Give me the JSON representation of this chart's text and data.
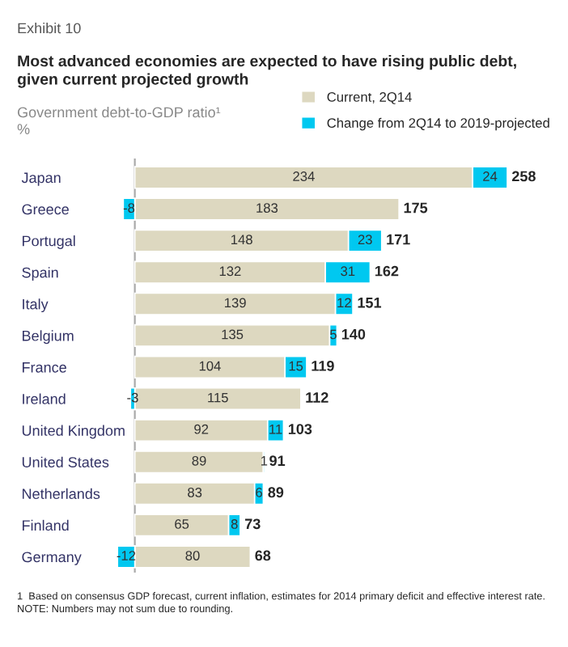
{
  "chart_data": {
    "type": "bar",
    "orientation": "horizontal",
    "stacked": true,
    "title": "Exhibit 10",
    "subtitle": "Most advanced economies are expected to have rising public debt,\ngiven current projected growth",
    "ylabel": "Government debt-to-GDP ratio¹\n%",
    "categories": [
      "Japan",
      "Greece",
      "Portugal",
      "Spain",
      "Italy",
      "Belgium",
      "France",
      "Ireland",
      "United Kingdom",
      "United States",
      "Netherlands",
      "Finland",
      "Germany"
    ],
    "series": [
      {
        "name": "Current, 2Q14",
        "color": "#ddd8c0",
        "values": [
          234,
          183,
          148,
          132,
          139,
          135,
          104,
          115,
          92,
          89,
          83,
          65,
          80
        ]
      },
      {
        "name": "Change from 2Q14 to 2019-projected",
        "color": "#00c8f0",
        "values": [
          24,
          -8,
          23,
          31,
          12,
          5,
          15,
          -3,
          11,
          1,
          6,
          8,
          -12
        ]
      }
    ],
    "totals": [
      "258",
      "175",
      "171",
      "162",
      "151",
      "140",
      "119",
      "112",
      "103",
      "91",
      "89",
      "73",
      "68"
    ],
    "data_labels": true,
    "tick_labels": "y",
    "grid": false,
    "legend": "top right",
    "annotations": [
      "1  Based on consensus GDP forecast, current inflation, estimates for 2014 primary deficit and effective interest rate.\nNOTE: Numbers may not sum due to rounding."
    ]
  }
}
